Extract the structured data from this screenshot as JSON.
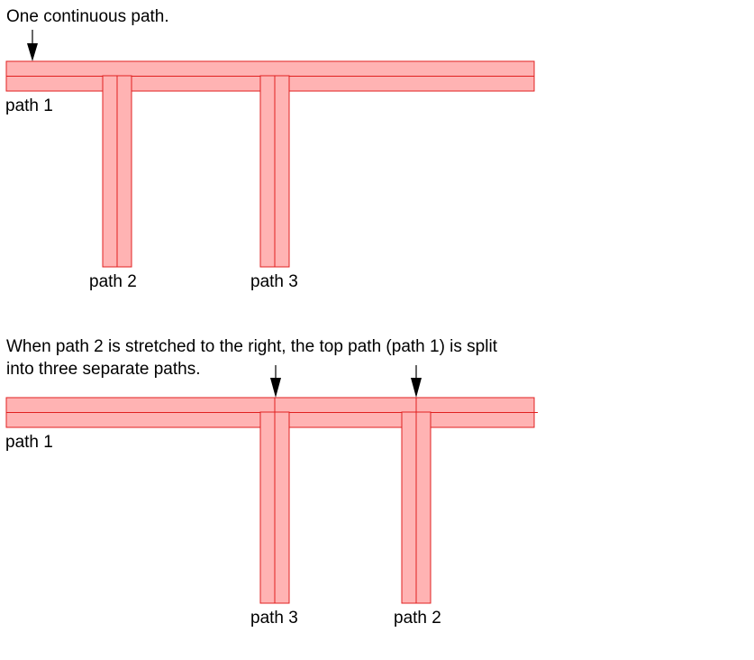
{
  "diagram": {
    "top_caption": "One continuous path.",
    "bottom_caption_line1": "When path 2 is stretched to the right, the top path (path 1) is split",
    "bottom_caption_line2": "into three separate paths.",
    "top_labels": {
      "path1": "path 1",
      "path2": "path 2",
      "path3": "path 3"
    },
    "bottom_labels": {
      "path1": "path 1",
      "path3": "path 3",
      "path2": "path 2"
    },
    "colors": {
      "fill": "#ffb3b3",
      "stroke": "#e02020",
      "arrow": "#000000"
    }
  }
}
